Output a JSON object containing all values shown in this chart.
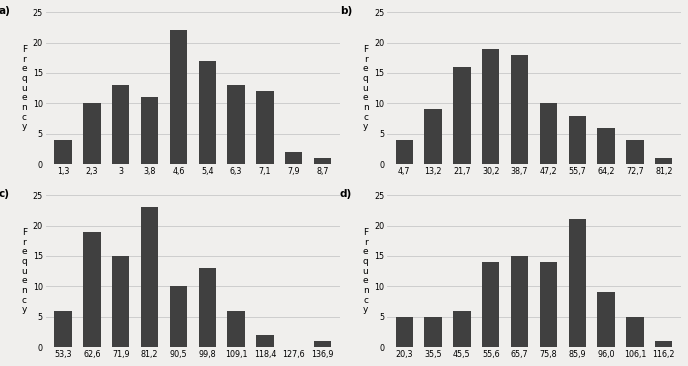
{
  "subplots": [
    {
      "label": "a)",
      "categories": [
        "1,3",
        "2,3",
        "3",
        "3,8",
        "4,6",
        "5,4",
        "6,3",
        "7,1",
        "7,9",
        "8,7"
      ],
      "values": [
        4,
        10,
        13,
        11,
        22,
        17,
        13,
        12,
        2,
        1
      ],
      "ylim": [
        0,
        25
      ],
      "yticks": [
        0,
        5,
        10,
        15,
        20,
        25
      ]
    },
    {
      "label": "b)",
      "categories": [
        "4,7",
        "13,2",
        "21,7",
        "30,2",
        "38,7",
        "47,2",
        "55,7",
        "64,2",
        "72,7",
        "81,2"
      ],
      "values": [
        4,
        9,
        16,
        19,
        18,
        10,
        8,
        6,
        4,
        1
      ],
      "ylim": [
        0,
        25
      ],
      "yticks": [
        0,
        5,
        10,
        15,
        20,
        25
      ]
    },
    {
      "label": "c)",
      "categories": [
        "53,3",
        "62,6",
        "71,9",
        "81,2",
        "90,5",
        "99,8",
        "109,1",
        "118,4",
        "127,6",
        "136,9"
      ],
      "values": [
        6,
        19,
        15,
        23,
        10,
        13,
        6,
        2,
        0,
        1
      ],
      "ylim": [
        0,
        25
      ],
      "yticks": [
        0,
        5,
        10,
        15,
        20,
        25
      ]
    },
    {
      "label": "d)",
      "categories": [
        "20,3",
        "35,5",
        "45,5",
        "55,6",
        "65,7",
        "75,8",
        "85,9",
        "96,0",
        "106,1",
        "116,2"
      ],
      "values": [
        5,
        5,
        6,
        14,
        15,
        14,
        21,
        9,
        5,
        1
      ],
      "ylim": [
        0,
        25
      ],
      "yticks": [
        0,
        5,
        10,
        15,
        20,
        25
      ]
    }
  ],
  "ylabel_chars": [
    "F",
    "r",
    "e",
    "q",
    "u",
    "e",
    "n",
    "c",
    "y"
  ],
  "bar_color": "#404040",
  "bg_color": "#f0efed",
  "grid_color": "#c8c8c8",
  "label_fontsize": 7.5,
  "tick_fontsize": 5.8,
  "ylabel_fontsize": 6.5
}
